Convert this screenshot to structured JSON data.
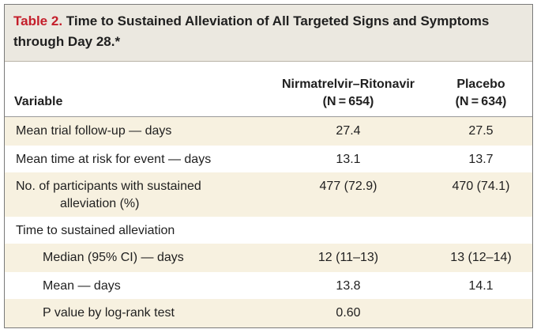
{
  "title": {
    "label": "Table 2.",
    "line1": "Time to Sustained Alleviation of All Targeted Signs and Symptoms",
    "line2": "through Day 28.*"
  },
  "header": {
    "variable": "Variable",
    "group_a_name": "Nirmatrelvir–Ritonavir",
    "group_a_n": "(N = 654)",
    "group_b_name": "Placebo",
    "group_b_n": "(N = 634)"
  },
  "rows": [
    {
      "label": "Mean trial follow-up — days",
      "a": "27.4",
      "b": "27.5"
    },
    {
      "label": "Mean time at risk for event — days",
      "a": "13.1",
      "b": "13.7"
    },
    {
      "label": "No. of participants with sustained",
      "label_cont": "alleviation (%)",
      "a": "477 (72.9)",
      "b": "470 (74.1)"
    },
    {
      "label": "Time to sustained alleviation",
      "a": "",
      "b": ""
    },
    {
      "label": "Median (95% CI) — days",
      "a": "12 (11–13)",
      "b": "13 (12–14)"
    },
    {
      "label": "Mean — days",
      "a": "13.8",
      "b": "14.1"
    },
    {
      "label": "P value by log-rank test",
      "a": "0.60",
      "b": ""
    }
  ]
}
